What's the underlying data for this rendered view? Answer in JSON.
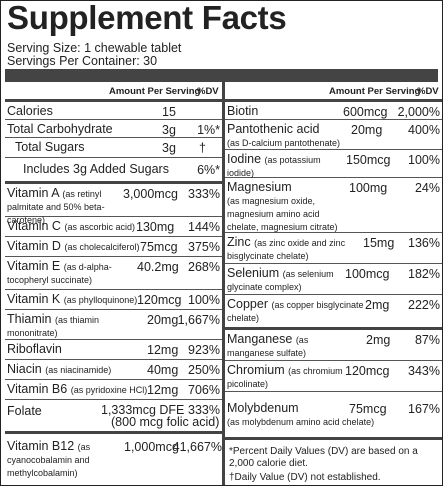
{
  "title": "Supplement Facts",
  "serving_size": "Serving Size: 1 chewable tablet",
  "servings_per_container": "Servings Per Container: 30",
  "header": {
    "amount": "Amount Per Serving",
    "dv": "%DV"
  },
  "left_rows": [
    {
      "name": "Calories",
      "sub": "",
      "amount": "15",
      "dv": ""
    },
    {
      "name": "Total Carbohydrate",
      "sub": "",
      "amount": "3g",
      "dv": "1%*"
    },
    {
      "name": "Total Sugars",
      "sub": "",
      "amount": "3g",
      "dv": "†"
    },
    {
      "name": "Includes 3g Added Sugars",
      "sub": "",
      "amount": "",
      "dv": "6%*"
    },
    {
      "name": "Vitamin A",
      "sub": "(as retinyl palmitate and 50% beta-carotene)",
      "amount": "3,000mcg",
      "dv": "333%"
    },
    {
      "name": "Vitamin C",
      "sub": "(as ascorbic acid)",
      "amount": "130mg",
      "dv": "144%"
    },
    {
      "name": "Vitamin D",
      "sub": "(as cholecalciferol)",
      "amount": "75mcg",
      "dv": "375%"
    },
    {
      "name": "Vitamin E",
      "sub": "(as d-alpha-tocopheryl succinate)",
      "amount": "40.2mg",
      "dv": "268%"
    },
    {
      "name": "Vitamin K",
      "sub": "(as phylloquinone)",
      "amount": "120mcg",
      "dv": "100%"
    },
    {
      "name": "Thiamin",
      "sub": "(as thiamin mononitrate)",
      "amount": "20mg",
      "dv": "1,667%"
    },
    {
      "name": "Riboflavin",
      "sub": "",
      "amount": "12mg",
      "dv": "923%"
    },
    {
      "name": "Niacin",
      "sub": "(as niacinamide)",
      "amount": "40mg",
      "dv": "250%"
    },
    {
      "name": "Vitamin B6",
      "sub": "(as pyridoxine HCl)",
      "amount": "12mg",
      "dv": "706%"
    },
    {
      "name": "Folate",
      "sub": "",
      "amount": "1,333mcg DFE",
      "amount2": "(800 mcg folic acid)",
      "dv": "333%"
    },
    {
      "name": "Vitamin B12",
      "sub": "(as cyanocobalamin and methylcobalamin)",
      "amount": "1,000mcg",
      "dv": "41,667%"
    }
  ],
  "right_rows": [
    {
      "name": "Biotin",
      "sub": "",
      "amount": "600mcg",
      "dv": "2,000%"
    },
    {
      "name": "Pantothenic acid",
      "sub": "(as D-calcium pantothenate)",
      "amount": "20mg",
      "dv": "400%"
    },
    {
      "name": "Iodine",
      "sub": "(as potassium iodide)",
      "amount": "150mcg",
      "dv": "100%"
    },
    {
      "name": "Magnesium",
      "sub": "(as magnesium oxide, magnesium amino acid chelate, magnesium citrate)",
      "amount": "100mg",
      "dv": "24%"
    },
    {
      "name": "Zinc",
      "sub": "(as zinc oxide and zinc bisglycinate chelate)",
      "amount": "15mg",
      "dv": "136%"
    },
    {
      "name": "Selenium",
      "sub": "(as selenium glycinate complex)",
      "amount": "100mcg",
      "dv": "182%"
    },
    {
      "name": "Copper",
      "sub": "(as copper bisglycinate chelate)",
      "amount": "2mg",
      "dv": "222%"
    },
    {
      "name": "Manganese",
      "sub": "(as manganese sulfate)",
      "amount": "2mg",
      "dv": "87%"
    },
    {
      "name": "Chromium",
      "sub": "(as chromium picolinate)",
      "amount": "120mcg",
      "dv": "343%"
    },
    {
      "name": "Molybdenum",
      "sub": "(as molybdenum amino acid chelate)",
      "amount": "75mcg",
      "dv": "167%"
    }
  ],
  "footnotes": {
    "dv_note": "*Percent Daily Values (DV) are based on a 2,000 calorie diet.",
    "no_dv": "†Daily Value (DV) not established."
  }
}
